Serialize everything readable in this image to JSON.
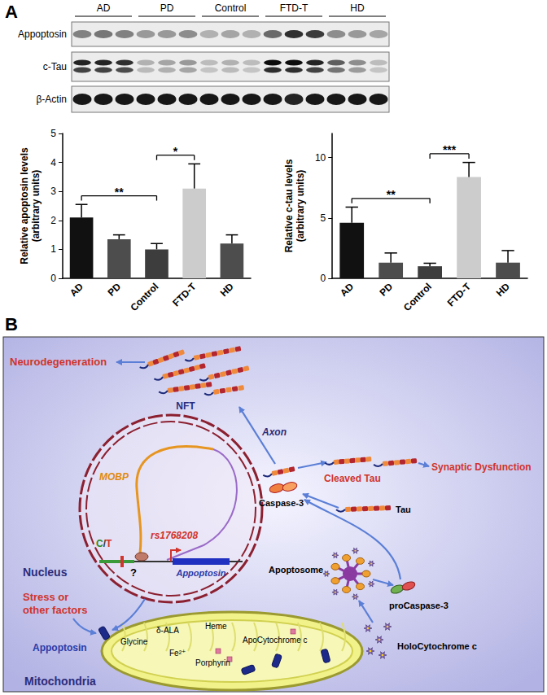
{
  "panel_a": {
    "label": "A",
    "blot": {
      "groups": [
        "AD",
        "PD",
        "Control",
        "FTD-T",
        "HD"
      ],
      "rows": [
        {
          "name": "Appoptosin",
          "intensity": [
            0.45,
            0.5,
            0.45,
            0.35,
            0.35,
            0.4,
            0.25,
            0.3,
            0.25,
            0.55,
            0.8,
            0.75,
            0.4,
            0.35,
            0.3
          ]
        },
        {
          "name": "c-Tau",
          "intensity": [
            0.85,
            0.85,
            0.8,
            0.25,
            0.3,
            0.35,
            0.2,
            0.25,
            0.2,
            0.95,
            0.95,
            0.85,
            0.6,
            0.4,
            0.2
          ]
        },
        {
          "name": "β-Actin",
          "intensity": [
            0.9,
            0.9,
            0.9,
            0.9,
            0.9,
            0.9,
            0.9,
            0.9,
            0.9,
            0.9,
            0.85,
            0.9,
            0.9,
            0.9,
            0.9
          ]
        }
      ]
    }
  },
  "chart_data": [
    {
      "type": "bar",
      "categories": [
        "AD",
        "PD",
        "Control",
        "FTD-T",
        "HD"
      ],
      "values": [
        2.1,
        1.35,
        1.0,
        3.1,
        1.2
      ],
      "errors": [
        0.45,
        0.15,
        0.2,
        0.85,
        0.3
      ],
      "colors": [
        "#111111",
        "#4d4d4d",
        "#3d3d3d",
        "#cccccc",
        "#4d4d4d"
      ],
      "y_label": "Relative apoptosin levels\n(arbitrary units)",
      "ylim": [
        0,
        5
      ],
      "yticks": [
        0,
        1,
        2,
        3,
        4,
        5
      ],
      "grid": false,
      "significance": [
        {
          "between": [
            "AD",
            "Control"
          ],
          "label": "**"
        },
        {
          "between": [
            "Control",
            "FTD-T"
          ],
          "label": "*"
        }
      ]
    },
    {
      "type": "bar",
      "categories": [
        "AD",
        "PD",
        "Control",
        "FTD-T",
        "HD"
      ],
      "values": [
        4.6,
        1.3,
        1.0,
        8.4,
        1.3
      ],
      "errors": [
        1.3,
        0.8,
        0.25,
        1.2,
        1.0
      ],
      "colors": [
        "#111111",
        "#4d4d4d",
        "#3d3d3d",
        "#cccccc",
        "#4d4d4d"
      ],
      "y_label": "Relative c-tau levels\n(arbitrary units)",
      "ylim": [
        0,
        12
      ],
      "yticks": [
        0,
        5,
        10
      ],
      "grid": false,
      "significance": [
        {
          "between": [
            "AD",
            "Control"
          ],
          "label": "**"
        },
        {
          "between": [
            "Control",
            "FTD-T"
          ],
          "label": "***"
        }
      ]
    }
  ],
  "panel_b": {
    "label": "B",
    "texts": {
      "neurodegeneration": "Neurodegeneration",
      "nft": "NFT",
      "axon": "Axon",
      "mobp": "MOBP",
      "allele": "C/T",
      "snp": "rs1768208",
      "question": "?",
      "gene": "Appoptosin",
      "nucleus": "Nucleus",
      "stress": [
        "Stress or",
        "other factors"
      ],
      "protein": "Appoptosin",
      "caspase": "Caspase-3",
      "cleaved_tau": "Cleaved Tau",
      "tau": "Tau",
      "synaptic": "Synaptic Dysfunction",
      "apoptosome": "Apoptosome",
      "procaspase": "proCaspase-3",
      "holocyt": "HoloCytochrome c",
      "apocyt": "ApoCytochrome c",
      "glycine": "Glycine",
      "ala": "δ-ALA",
      "heme": "Heme",
      "fe": "Fe²⁺",
      "porphyrin": "Porphyrin",
      "mitochondria": "Mitochondria"
    }
  }
}
